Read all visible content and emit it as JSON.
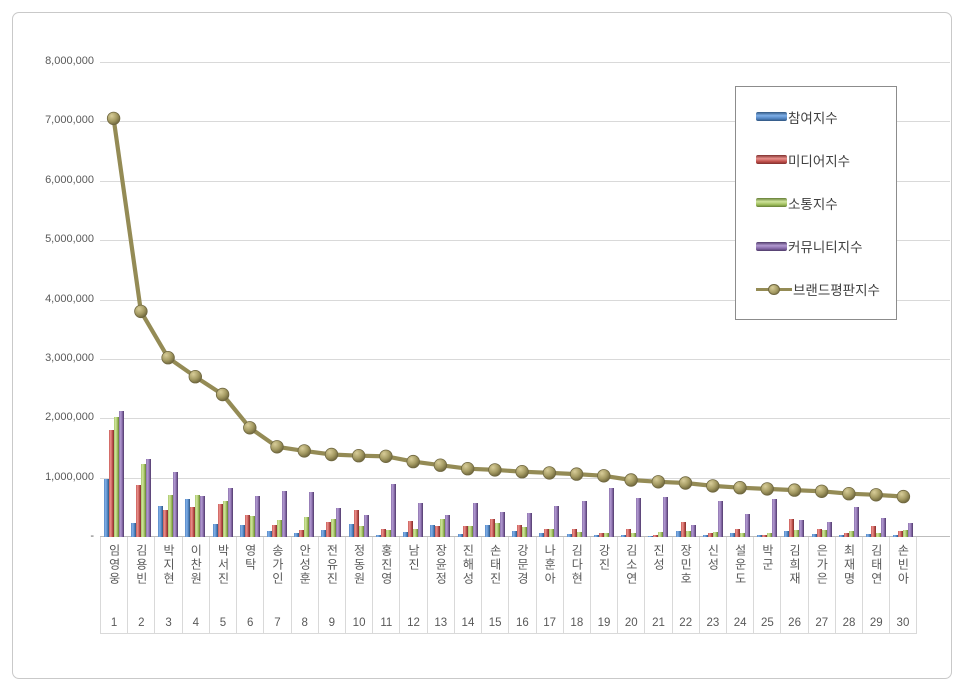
{
  "chart_data": {
    "type": "bar+line",
    "title": "",
    "xlabel": "",
    "ylabel": "",
    "grid": true,
    "legend_position": "top-right",
    "categories": [
      "임영웅",
      "김용빈",
      "박지현",
      "이찬원",
      "박서진",
      "영탁",
      "송가인",
      "안성훈",
      "전유진",
      "정동원",
      "홍진영",
      "남진",
      "장윤정",
      "진해성",
      "손태진",
      "강문경",
      "나훈아",
      "김다현",
      "강진",
      "김소연",
      "진성",
      "장민호",
      "신성",
      "설운도",
      "박군",
      "김희재",
      "은가은",
      "최재명",
      "김태연",
      "손빈아"
    ],
    "ranks": [
      "1",
      "2",
      "3",
      "4",
      "5",
      "6",
      "7",
      "8",
      "9",
      "10",
      "11",
      "12",
      "13",
      "14",
      "15",
      "16",
      "17",
      "18",
      "19",
      "20",
      "21",
      "22",
      "23",
      "24",
      "25",
      "26",
      "27",
      "28",
      "29",
      "30"
    ],
    "series": [
      {
        "name": "참여지수",
        "type": "bar",
        "color": "#4F81BD",
        "values": [
          970000,
          230000,
          530000,
          640000,
          220000,
          210000,
          100000,
          60000,
          120000,
          220000,
          40000,
          80000,
          210000,
          50000,
          200000,
          100000,
          60000,
          50000,
          30000,
          40000,
          20000,
          100000,
          40000,
          60000,
          30000,
          100000,
          50000,
          30000,
          50000,
          40000
        ]
      },
      {
        "name": "미디어지수",
        "type": "bar",
        "color": "#C0504D",
        "values": [
          1810000,
          870000,
          460000,
          500000,
          560000,
          370000,
          200000,
          110000,
          250000,
          450000,
          130000,
          270000,
          180000,
          180000,
          300000,
          200000,
          140000,
          130000,
          60000,
          130000,
          40000,
          260000,
          60000,
          140000,
          40000,
          300000,
          130000,
          60000,
          180000,
          100000
        ]
      },
      {
        "name": "소통지수",
        "type": "bar",
        "color": "#9BBB59",
        "values": [
          2020000,
          1230000,
          700000,
          710000,
          600000,
          350000,
          290000,
          330000,
          300000,
          190000,
          120000,
          140000,
          310000,
          190000,
          240000,
          170000,
          130000,
          90000,
          70000,
          60000,
          90000,
          100000,
          90000,
          70000,
          60000,
          110000,
          110000,
          100000,
          60000,
          110000
        ]
      },
      {
        "name": "커뮤니티지수",
        "type": "bar",
        "color": "#8064A2",
        "values": [
          2120000,
          1320000,
          1090000,
          690000,
          830000,
          690000,
          780000,
          760000,
          490000,
          370000,
          890000,
          570000,
          370000,
          580000,
          420000,
          400000,
          530000,
          600000,
          830000,
          650000,
          680000,
          210000,
          610000,
          380000,
          640000,
          280000,
          250000,
          500000,
          320000,
          240000
        ]
      },
      {
        "name": "브랜드평판지수",
        "type": "line",
        "color": "#948B55",
        "values": [
          7050000,
          3800000,
          3020000,
          2700000,
          2400000,
          1840000,
          1520000,
          1450000,
          1390000,
          1370000,
          1360000,
          1270000,
          1210000,
          1150000,
          1130000,
          1100000,
          1080000,
          1060000,
          1030000,
          960000,
          930000,
          910000,
          860000,
          830000,
          810000,
          790000,
          770000,
          730000,
          710000,
          680000
        ]
      }
    ],
    "y_axis": {
      "min": 0,
      "max": 8000000,
      "step": 1000000,
      "tick_labels": [
        "8,000,000",
        "7,000,000",
        "6,000,000",
        "5,000,000",
        "4,000,000",
        "3,000,000",
        "2,000,000",
        "1,000,000"
      ],
      "zero_label": "-"
    }
  }
}
